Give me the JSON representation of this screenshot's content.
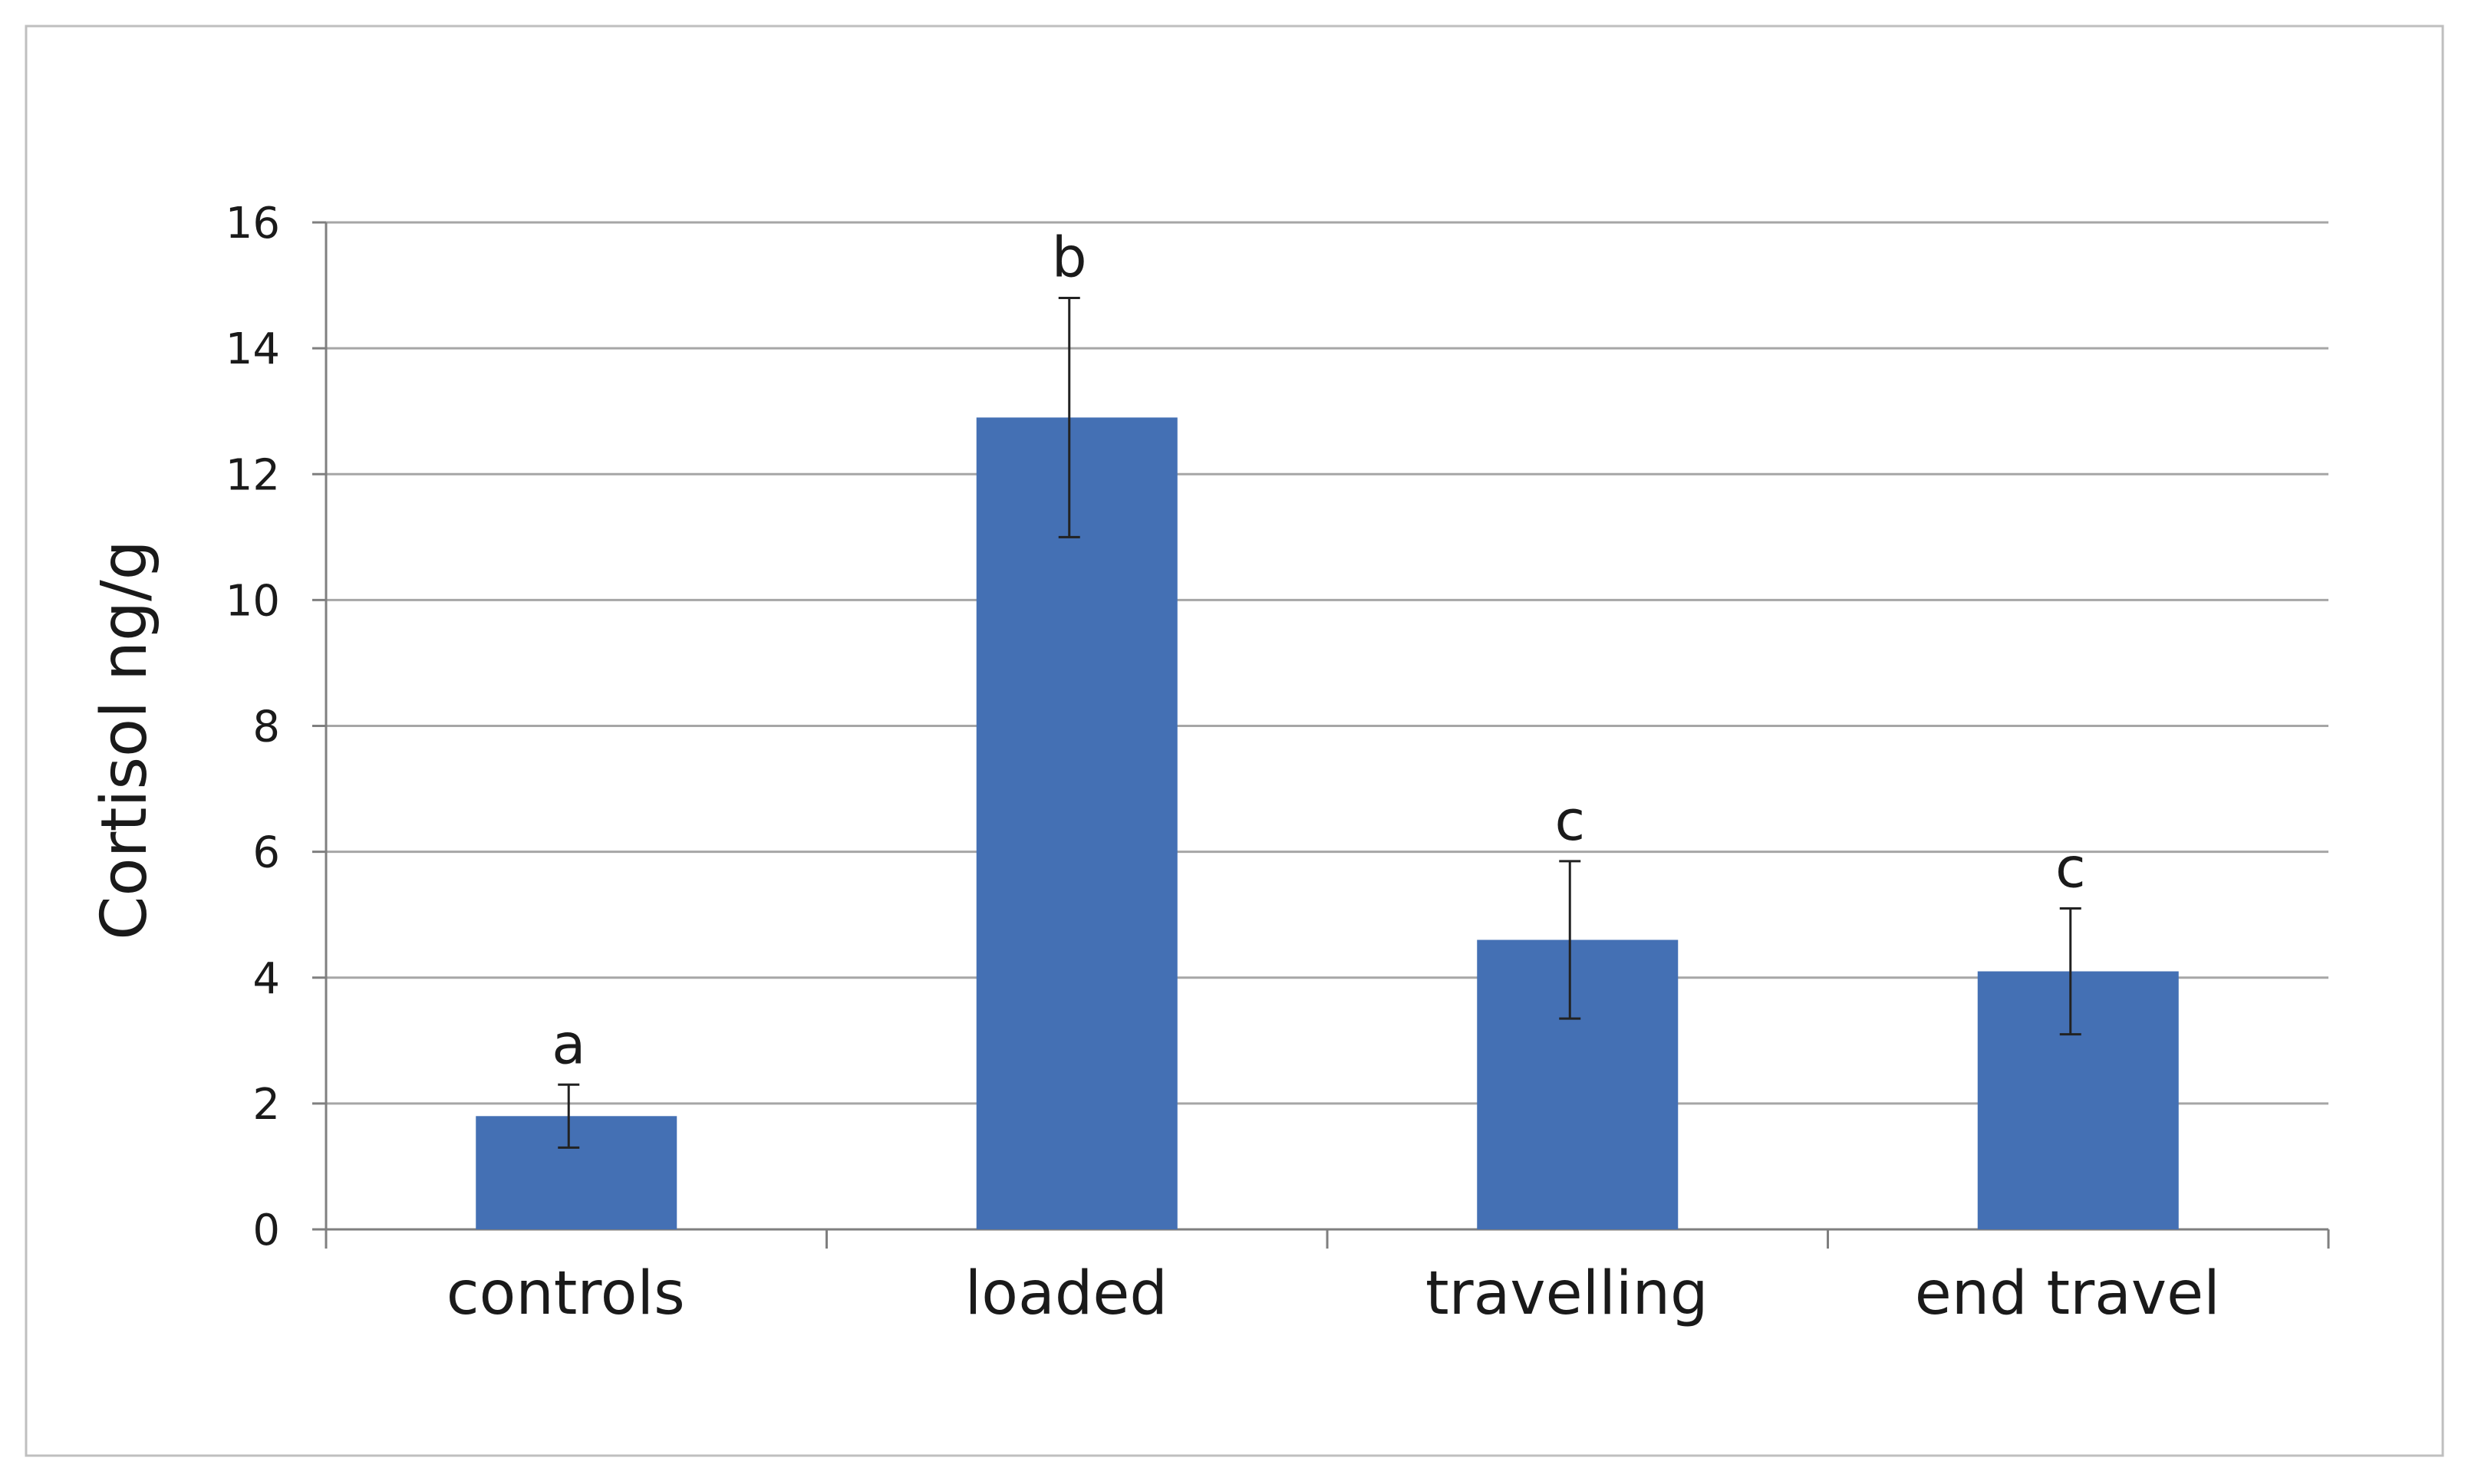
{
  "chart_data": {
    "type": "bar",
    "title": "",
    "xlabel": "",
    "ylabel": "Cortisol ng/g",
    "categories": [
      "controls",
      "loaded",
      "travelling",
      "end travel"
    ],
    "series": [
      {
        "values": [
          1.8,
          12.9,
          4.6,
          4.1
        ],
        "error_plus": [
          0.5,
          1.9,
          1.25,
          1.0
        ],
        "error_minus": [
          0.5,
          1.9,
          1.25,
          1.0
        ],
        "significance_labels": [
          "a",
          "b",
          "c",
          "c"
        ],
        "color": "#4470B4"
      }
    ],
    "ylim": [
      0,
      16
    ],
    "yticks": [
      0,
      2,
      4,
      6,
      8,
      10,
      12,
      14,
      16
    ],
    "ytick_labels": [
      "0",
      "2",
      "4",
      "6",
      "8",
      "10",
      "12",
      "14",
      "16"
    ],
    "grid": true,
    "legend": "none",
    "colors": {
      "bar": "#4470B4",
      "grid": "#a6a6a6",
      "axis": "#7f7f7f",
      "error_bar": "#222222",
      "frame": "#bfbfbf"
    }
  }
}
